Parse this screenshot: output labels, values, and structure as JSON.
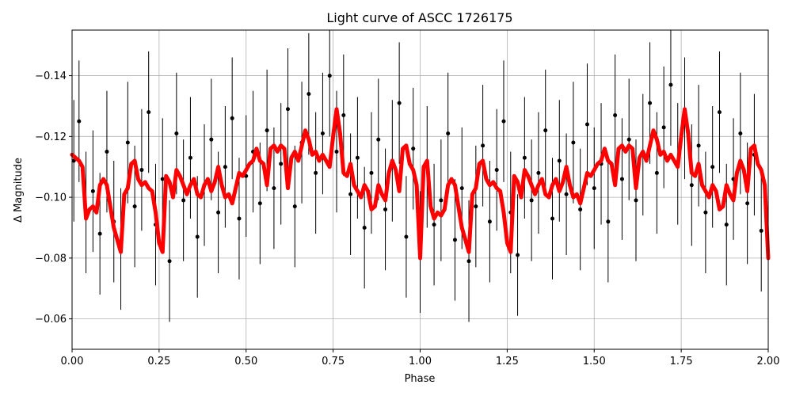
{
  "chart_data": {
    "type": "scatter",
    "title": "Light curve of ASCC 1726175",
    "xlabel": "Phase",
    "ylabel": "Δ Magnitude",
    "xlim": [
      0.0,
      2.0
    ],
    "ylim": [
      -0.05,
      -0.155
    ],
    "y_inverted": true,
    "grid": true,
    "x_ticks": [
      0.0,
      0.25,
      0.5,
      0.75,
      1.0,
      1.25,
      1.5,
      1.75,
      2.0
    ],
    "x_tick_labels": [
      "0.00",
      "0.25",
      "0.50",
      "0.75",
      "1.00",
      "1.25",
      "1.50",
      "1.75",
      "2.00"
    ],
    "y_ticks": [
      -0.14,
      -0.12,
      -0.1,
      -0.08,
      -0.06
    ],
    "y_tick_labels": [
      "−0.14",
      "−0.12",
      "−0.10",
      "−0.08",
      "−0.06"
    ],
    "colors": {
      "points": "#000000",
      "model": "#ff0000",
      "grid": "#b0b0b0"
    },
    "series": [
      {
        "kind": "points_with_errorbars",
        "x": [
          0.005,
          0.02,
          0.04,
          0.06,
          0.08,
          0.1,
          0.12,
          0.14,
          0.16,
          0.18,
          0.2,
          0.22,
          0.24,
          0.26,
          0.28,
          0.3,
          0.32,
          0.34,
          0.36,
          0.38,
          0.4,
          0.42,
          0.44,
          0.46,
          0.48,
          0.5,
          0.52,
          0.54,
          0.56,
          0.58,
          0.6,
          0.62,
          0.64,
          0.66,
          0.68,
          0.7,
          0.72,
          0.74,
          0.76,
          0.78,
          0.8,
          0.82,
          0.84,
          0.86,
          0.88,
          0.9,
          0.92,
          0.94,
          0.96,
          0.98,
          1.0,
          1.02,
          1.04,
          1.06,
          1.08,
          1.1,
          1.12,
          1.14,
          1.16,
          1.18,
          1.2,
          1.22,
          1.24,
          1.26,
          1.28,
          1.3,
          1.32,
          1.34,
          1.36,
          1.38,
          1.4,
          1.42,
          1.44,
          1.46,
          1.48,
          1.5,
          1.52,
          1.54,
          1.56,
          1.58,
          1.6,
          1.62,
          1.64,
          1.66,
          1.68,
          1.7,
          1.72,
          1.74,
          1.76,
          1.78,
          1.8,
          1.82,
          1.84,
          1.86,
          1.88,
          1.9,
          1.92,
          1.94,
          1.96,
          1.98
        ],
        "y": [
          -0.112,
          -0.125,
          -0.095,
          -0.102,
          -0.088,
          -0.115,
          -0.092,
          -0.083,
          -0.118,
          -0.097,
          -0.109,
          -0.128,
          -0.091,
          -0.106,
          -0.079,
          -0.121,
          -0.099,
          -0.113,
          -0.087,
          -0.104,
          -0.119,
          -0.095,
          -0.11,
          -0.126,
          -0.093,
          -0.107,
          -0.115,
          -0.098,
          -0.122,
          -0.103,
          -0.111,
          -0.129,
          -0.097,
          -0.118,
          -0.134,
          -0.108,
          -0.121,
          -0.14,
          -0.115,
          -0.127,
          -0.101,
          -0.113,
          -0.09,
          -0.108,
          -0.119,
          -0.096,
          -0.112,
          -0.131,
          -0.087,
          -0.116,
          -0.082,
          -0.11,
          -0.091,
          -0.099,
          -0.121,
          -0.086,
          -0.103,
          -0.079,
          -0.097,
          -0.117,
          -0.092,
          -0.109,
          -0.125,
          -0.095,
          -0.081,
          -0.113,
          -0.099,
          -0.108,
          -0.122,
          -0.093,
          -0.112,
          -0.101,
          -0.118,
          -0.096,
          -0.124,
          -0.103,
          -0.111,
          -0.092,
          -0.127,
          -0.106,
          -0.119,
          -0.099,
          -0.114,
          -0.131,
          -0.108,
          -0.123,
          -0.137,
          -0.111,
          -0.126,
          -0.104,
          -0.117,
          -0.095,
          -0.11,
          -0.128,
          -0.091,
          -0.106,
          -0.121,
          -0.098,
          -0.114,
          -0.089
        ],
        "error": 0.02
      },
      {
        "kind": "model_line",
        "x": [
          0.0,
          0.02,
          0.03,
          0.04,
          0.05,
          0.06,
          0.07,
          0.08,
          0.09,
          0.1,
          0.11,
          0.12,
          0.13,
          0.14,
          0.15,
          0.16,
          0.17,
          0.18,
          0.19,
          0.2,
          0.21,
          0.22,
          0.23,
          0.24,
          0.25,
          0.26,
          0.27,
          0.28,
          0.29,
          0.3,
          0.31,
          0.32,
          0.33,
          0.34,
          0.35,
          0.36,
          0.37,
          0.38,
          0.39,
          0.4,
          0.41,
          0.42,
          0.43,
          0.44,
          0.45,
          0.46,
          0.47,
          0.48,
          0.49,
          0.5,
          0.51,
          0.52,
          0.53,
          0.54,
          0.55,
          0.56,
          0.57,
          0.58,
          0.59,
          0.6,
          0.61,
          0.62,
          0.63,
          0.64,
          0.65,
          0.66,
          0.67,
          0.68,
          0.69,
          0.7,
          0.71,
          0.72,
          0.73,
          0.74,
          0.75,
          0.76,
          0.77,
          0.78,
          0.79,
          0.8,
          0.81,
          0.82,
          0.83,
          0.84,
          0.85,
          0.86,
          0.87,
          0.88,
          0.89,
          0.9,
          0.91,
          0.92,
          0.93,
          0.94,
          0.95,
          0.96,
          0.97,
          0.98,
          0.99,
          1.0,
          1.01,
          1.02,
          1.03,
          1.04,
          1.05,
          1.06,
          1.07,
          1.08,
          1.09,
          1.1,
          1.11,
          1.12,
          1.13,
          1.14,
          1.15,
          1.16,
          1.17,
          1.18,
          1.19,
          1.2,
          1.21,
          1.22,
          1.23,
          1.24,
          1.25,
          1.26,
          1.27,
          1.28,
          1.29,
          1.3,
          1.31,
          1.32,
          1.33,
          1.34,
          1.35,
          1.36,
          1.37,
          1.38,
          1.39,
          1.4,
          1.41,
          1.42,
          1.43,
          1.44,
          1.45,
          1.46,
          1.47,
          1.48,
          1.49,
          1.5,
          1.51,
          1.52,
          1.53,
          1.54,
          1.55,
          1.56,
          1.57,
          1.58,
          1.59,
          1.6,
          1.61,
          1.62,
          1.63,
          1.64,
          1.65,
          1.66,
          1.67,
          1.68,
          1.69,
          1.7,
          1.71,
          1.72,
          1.73,
          1.74,
          1.75,
          1.76,
          1.77,
          1.78,
          1.79,
          1.8,
          1.81,
          1.82,
          1.83,
          1.84,
          1.85,
          1.86,
          1.87,
          1.88,
          1.89,
          1.9,
          1.91,
          1.92,
          1.93,
          1.94,
          1.95,
          1.96,
          1.97,
          1.98,
          1.99,
          2.0
        ],
        "y": [
          -0.114,
          -0.112,
          -0.11,
          -0.093,
          -0.096,
          -0.097,
          -0.095,
          -0.104,
          -0.106,
          -0.104,
          -0.097,
          -0.09,
          -0.086,
          -0.082,
          -0.101,
          -0.103,
          -0.111,
          -0.112,
          -0.106,
          -0.104,
          -0.105,
          -0.103,
          -0.102,
          -0.095,
          -0.085,
          -0.082,
          -0.107,
          -0.105,
          -0.1,
          -0.109,
          -0.107,
          -0.104,
          -0.101,
          -0.104,
          -0.106,
          -0.101,
          -0.1,
          -0.104,
          -0.106,
          -0.102,
          -0.105,
          -0.11,
          -0.104,
          -0.1,
          -0.101,
          -0.098,
          -0.103,
          -0.108,
          -0.107,
          -0.109,
          -0.111,
          -0.112,
          -0.116,
          -0.112,
          -0.111,
          -0.104,
          -0.116,
          -0.117,
          -0.115,
          -0.117,
          -0.116,
          -0.103,
          -0.113,
          -0.115,
          -0.112,
          -0.117,
          -0.122,
          -0.119,
          -0.114,
          -0.115,
          -0.112,
          -0.114,
          -0.112,
          -0.11,
          -0.12,
          -0.129,
          -0.121,
          -0.108,
          -0.107,
          -0.111,
          -0.104,
          -0.102,
          -0.1,
          -0.104,
          -0.102,
          -0.096,
          -0.097,
          -0.104,
          -0.101,
          -0.099,
          -0.108,
          -0.112,
          -0.109,
          -0.102,
          -0.116,
          -0.117,
          -0.111,
          -0.109,
          -0.104,
          -0.08,
          -0.11,
          -0.112,
          -0.097,
          -0.093,
          -0.095,
          -0.094,
          -0.096,
          -0.104,
          -0.106,
          -0.104,
          -0.097,
          -0.09,
          -0.086,
          -0.082,
          -0.101,
          -0.103,
          -0.111,
          -0.112,
          -0.106,
          -0.104,
          -0.105,
          -0.103,
          -0.102,
          -0.095,
          -0.085,
          -0.082,
          -0.107,
          -0.105,
          -0.1,
          -0.109,
          -0.107,
          -0.104,
          -0.101,
          -0.104,
          -0.106,
          -0.101,
          -0.1,
          -0.104,
          -0.106,
          -0.102,
          -0.105,
          -0.11,
          -0.104,
          -0.1,
          -0.101,
          -0.098,
          -0.103,
          -0.108,
          -0.107,
          -0.109,
          -0.111,
          -0.112,
          -0.116,
          -0.112,
          -0.111,
          -0.104,
          -0.116,
          -0.117,
          -0.115,
          -0.117,
          -0.116,
          -0.103,
          -0.113,
          -0.115,
          -0.112,
          -0.117,
          -0.122,
          -0.119,
          -0.114,
          -0.115,
          -0.112,
          -0.114,
          -0.112,
          -0.11,
          -0.12,
          -0.129,
          -0.121,
          -0.108,
          -0.107,
          -0.111,
          -0.104,
          -0.102,
          -0.1,
          -0.104,
          -0.102,
          -0.096,
          -0.097,
          -0.104,
          -0.101,
          -0.099,
          -0.108,
          -0.112,
          -0.109,
          -0.102,
          -0.116,
          -0.117,
          -0.111,
          -0.109,
          -0.104,
          -0.08
        ]
      }
    ]
  }
}
